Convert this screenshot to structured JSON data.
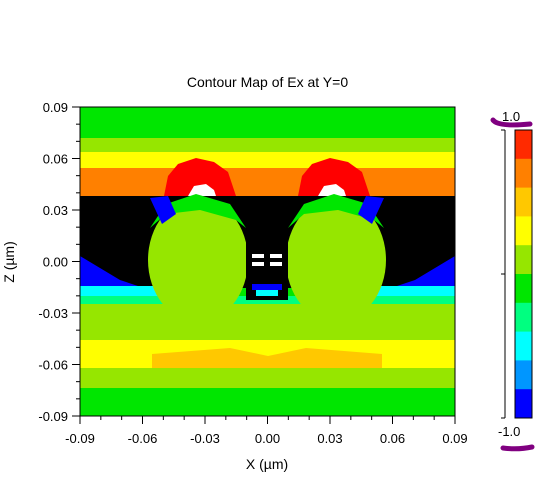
{
  "chart_data": {
    "type": "heatmap",
    "title": "Contour Map of Ex at Y=0",
    "xlabel": "X (µm)",
    "ylabel": "Z (µm)",
    "xlim": [
      -0.09,
      0.09
    ],
    "ylim": [
      -0.09,
      0.09
    ],
    "x_ticks": [
      "-0.09",
      "-0.06",
      "-0.03",
      "0.00",
      "0.03",
      "0.06",
      "0.09"
    ],
    "y_ticks": [
      "0.09",
      "0.06",
      "0.03",
      "0.00",
      "-0.03",
      "-0.06",
      "-0.09"
    ],
    "colorbar": {
      "max_label": "1.0",
      "min_label": "-1.0",
      "range": [
        -1.0,
        1.0
      ],
      "colors": [
        "#ff2a00",
        "#ff8000",
        "#ffc800",
        "#ffff00",
        "#96e600",
        "#00e600",
        "#00ff80",
        "#00ffff",
        "#0096ff",
        "#0000ff"
      ]
    },
    "levels": [
      {
        "color": "#00e600",
        "desc": "top band and bottom band"
      },
      {
        "color": "#96e600",
        "desc": "central lobes and upper/lower side bands"
      },
      {
        "color": "#ffff00",
        "desc": "bands near z=0.065 and z=-0.055"
      },
      {
        "color": "#ff8000",
        "desc": "band near z=0.05"
      },
      {
        "color": "#ff0000",
        "desc": "hot spots above lobes"
      },
      {
        "color": "#ffffff",
        "desc": "peak saturation above lobes and gap"
      },
      {
        "color": "#000000",
        "desc": "void region"
      },
      {
        "color": "#0000ff",
        "desc": "side edges and wedges"
      },
      {
        "color": "#00ffff",
        "desc": "side gradient"
      }
    ]
  }
}
